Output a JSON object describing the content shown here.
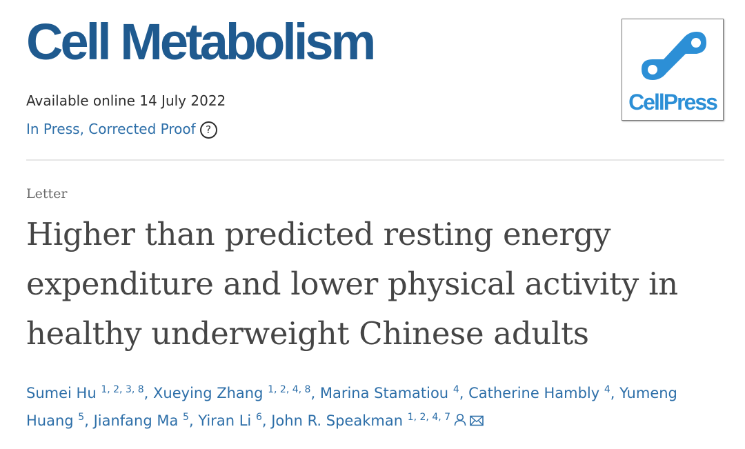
{
  "journal": {
    "title": "Cell Metabolism"
  },
  "meta": {
    "available": "Available online 14 July 2022",
    "status": "In Press, Corrected Proof",
    "help_icon_glyph": "?"
  },
  "logo": {
    "text": "CellPress",
    "color": "#2c8fd6"
  },
  "article": {
    "type": "Letter",
    "title": "Higher than predicted resting energy expenditure and lower physical activity in healthy underweight Chinese adults"
  },
  "authors": [
    {
      "name": "Sumei Hu",
      "affiliations": "1, 2, 3, 8",
      "sep": ", "
    },
    {
      "name": "Xueying Zhang",
      "affiliations": "1, 2, 4, 8",
      "sep": ", "
    },
    {
      "name": "Marina Stamatiou",
      "affiliations": "4",
      "sep": ", "
    },
    {
      "name": "Catherine Hambly",
      "affiliations": "4",
      "sep": ", "
    },
    {
      "name": "Yumeng Huang",
      "affiliations": "5",
      "sep": ", "
    },
    {
      "name": "Jianfang Ma",
      "affiliations": "5",
      "sep": ", "
    },
    {
      "name": "Yiran Li",
      "affiliations": "6",
      "sep": ", "
    },
    {
      "name": "John R. Speakman",
      "affiliations": "1, 2, 4, 7",
      "sep": ""
    }
  ],
  "icons": {
    "person": "person-icon",
    "email": "envelope-icon"
  },
  "colors": {
    "journal": "#1f5a8f",
    "link": "#2c6ea8",
    "title": "#454545"
  }
}
